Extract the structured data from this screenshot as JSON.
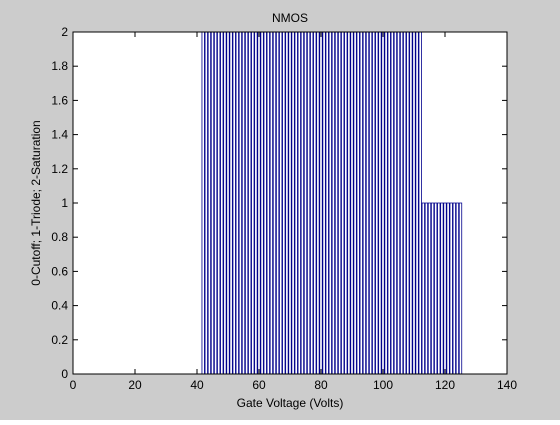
{
  "window": {
    "background": "#cccccc",
    "plot_background": "#ffffff"
  },
  "chart_data": {
    "type": "bar",
    "title": "NMOS",
    "xlabel": "Gate Voltage (Volts)",
    "ylabel": "0-Cutoff; 1-Triode; 2-Saturation",
    "xlim": [
      0,
      140
    ],
    "ylim": [
      0,
      2
    ],
    "xticks": [
      0,
      20,
      40,
      60,
      80,
      100,
      120,
      140
    ],
    "yticks": [
      0,
      0.2,
      0.4,
      0.6,
      0.8,
      1,
      1.2,
      1.4,
      1.6,
      1.8,
      2
    ],
    "ytick_labels": [
      "0",
      "0.2",
      "0.4",
      "0.6",
      "0.8",
      "1",
      "1.2",
      "1.4",
      "1.6",
      "1.8",
      "2"
    ],
    "grid": false,
    "legend": "none",
    "bar_style": "unfilled stems",
    "colors": {
      "bars": "#00008b"
    },
    "series": [
      {
        "x_start": 42,
        "x_end": 112,
        "step": 1,
        "value": 2
      },
      {
        "x_start": 113,
        "x_end": 125,
        "step": 1,
        "value": 1
      }
    ]
  }
}
